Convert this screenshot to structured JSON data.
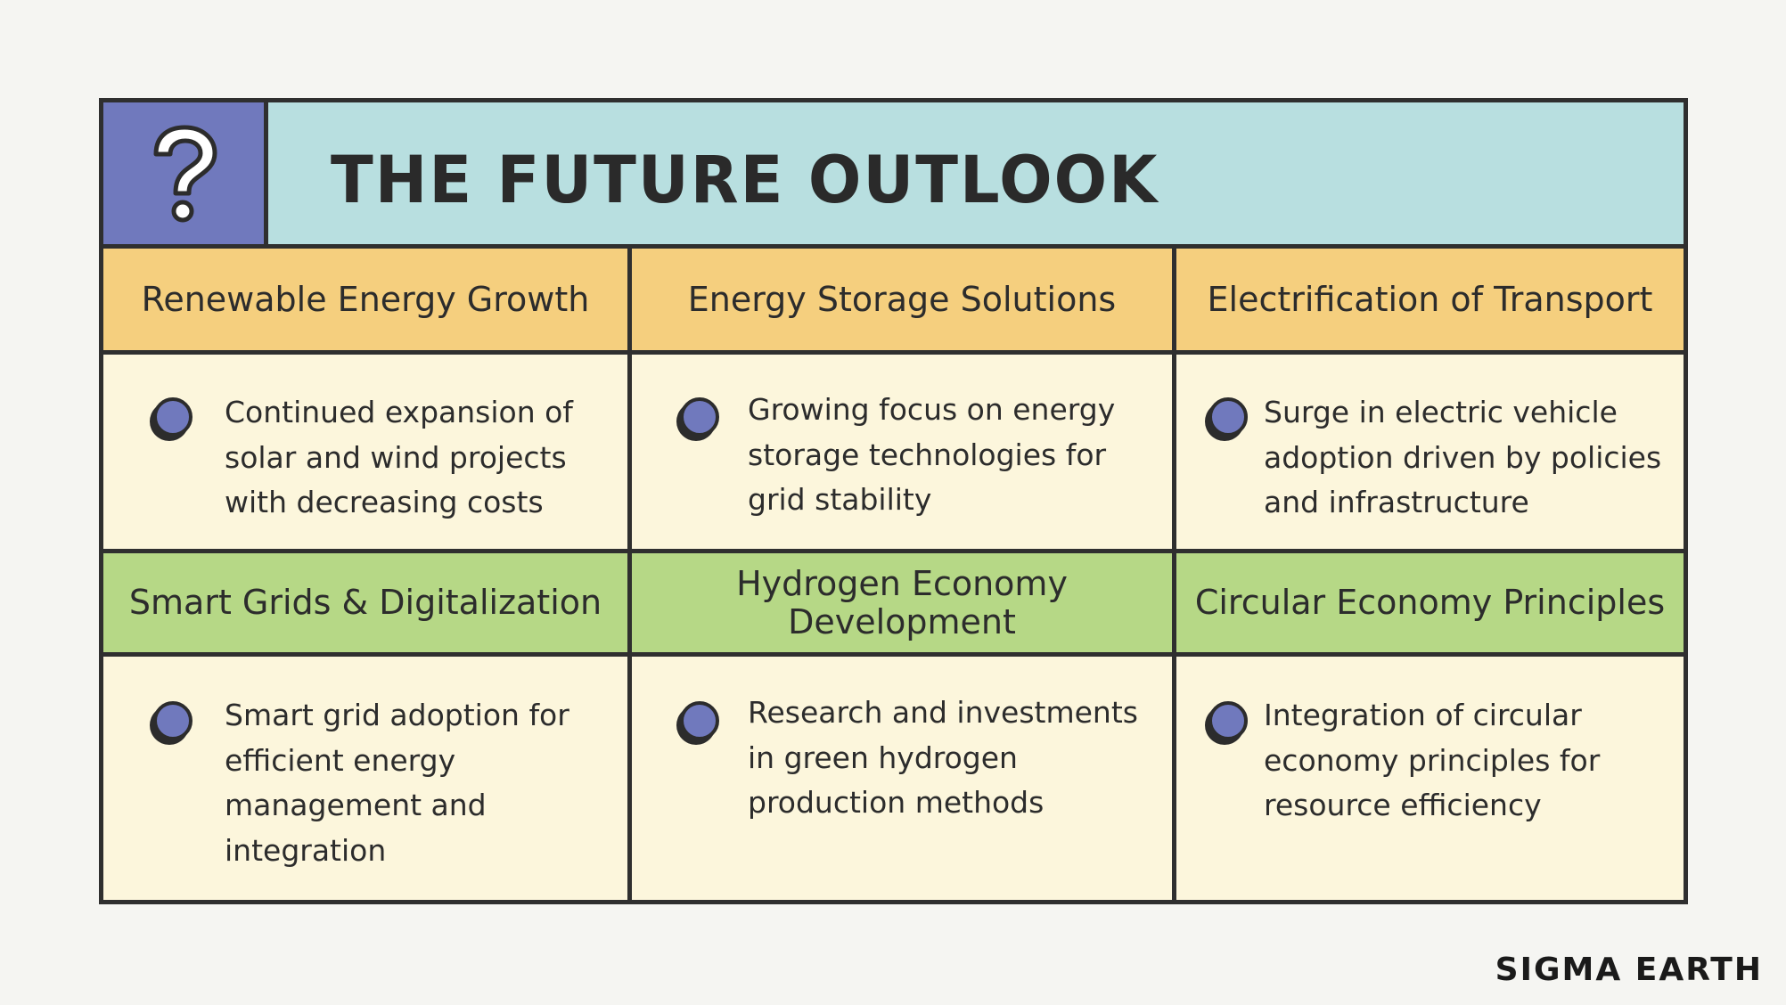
{
  "title": "THE FUTURE OUTLOOK",
  "brand": "SIGMA EARTH",
  "icons": {
    "header": "question-mark-icon",
    "bullet": "bullet-dot-icon"
  },
  "colors": {
    "title_bg": "#b8dfe0",
    "icon_bg": "#7079bd",
    "row1_head_bg": "#f5cf7e",
    "row2_head_bg": "#b6d886",
    "body_bg": "#fcf6dc",
    "border": "#2f2f2f"
  },
  "rows": [
    {
      "cells": [
        {
          "heading": "Renewable Energy Growth",
          "text": "Continued expansion of solar and wind projects with decreasing costs"
        },
        {
          "heading": "Energy Storage Solutions",
          "text": "Growing focus on energy storage technologies for grid stability"
        },
        {
          "heading": "Electrification of Transport",
          "text": "Surge in electric vehicle adoption driven by policies and infrastructure"
        }
      ]
    },
    {
      "cells": [
        {
          "heading": "Smart Grids & Digitalization",
          "text": "Smart grid adoption for efficient energy management and integration"
        },
        {
          "heading": "Hydrogen Economy Development",
          "text": "Research and investments in green hydrogen production methods"
        },
        {
          "heading": "Circular Economy Principles",
          "text": "Integration of circular economy principles for resource efficiency"
        }
      ]
    }
  ]
}
